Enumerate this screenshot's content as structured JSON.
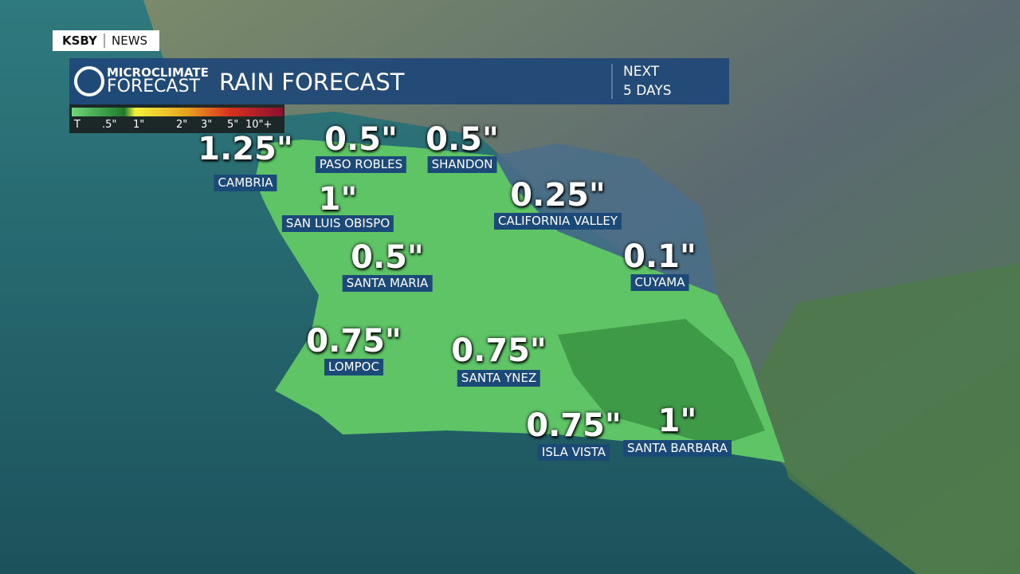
{
  "branding": {
    "station": "KSBY",
    "label": "NEWS"
  },
  "header": {
    "logo_top": "MICROCLIMATE",
    "logo_bottom": "FORECAST",
    "title": "RAIN FORECAST",
    "period_top": "NEXT",
    "period_bottom": "5 DAYS"
  },
  "legend": {
    "labels": [
      "T",
      ".5\"",
      "1\"",
      "2\"",
      "3\"",
      "5\"",
      "10\"+"
    ]
  },
  "locations": [
    {
      "name": "CAMBRIA",
      "amount": "1.25\""
    },
    {
      "name": "PASO ROBLES",
      "amount": "0.5\""
    },
    {
      "name": "SHANDON",
      "amount": "0.5\""
    },
    {
      "name": "SAN LUIS OBISPO",
      "amount": "1\""
    },
    {
      "name": "CALIFORNIA VALLEY",
      "amount": "0.25\""
    },
    {
      "name": "SANTA MARIA",
      "amount": "0.5\""
    },
    {
      "name": "CUYAMA",
      "amount": "0.1\""
    },
    {
      "name": "LOMPOC",
      "amount": "0.75\""
    },
    {
      "name": "SANTA YNEZ",
      "amount": "0.75\""
    },
    {
      "name": "ISLA VISTA",
      "amount": "0.75\""
    },
    {
      "name": "SANTA BARBARA",
      "amount": "1\""
    }
  ]
}
